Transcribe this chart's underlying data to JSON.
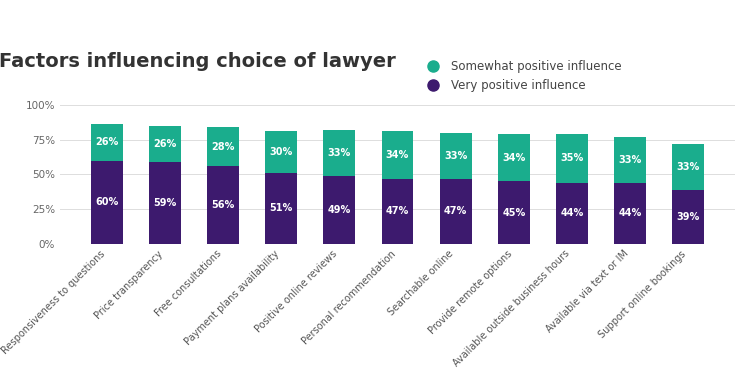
{
  "title": "Factors influencing choice of lawyer",
  "categories": [
    "Responsiveness to questions",
    "Price transparency",
    "Free consultations",
    "Payment plans availability",
    "Positive online reviews",
    "Personal recommendation",
    "Searchable online",
    "Provide remote options",
    "Available outside business hours",
    "Available via text or IM",
    "Support online bookings"
  ],
  "very_positive": [
    60,
    59,
    56,
    51,
    49,
    47,
    47,
    45,
    44,
    44,
    39
  ],
  "somewhat_positive": [
    26,
    26,
    28,
    30,
    33,
    34,
    33,
    34,
    35,
    33,
    33
  ],
  "color_very": "#3d1a6e",
  "color_somewhat": "#1aad8d",
  "background_color": "#ffffff",
  "ylim": [
    0,
    100
  ],
  "yticks": [
    0,
    25,
    50,
    75,
    100
  ],
  "ytick_labels": [
    "0%",
    "25%",
    "50%",
    "75%",
    "100%"
  ],
  "legend_somewhat": "Somewhat positive influence",
  "legend_very": "Very positive influence",
  "title_fontsize": 14,
  "label_fontsize": 7,
  "tick_fontsize": 7.5,
  "legend_fontsize": 8.5,
  "bar_width": 0.55
}
